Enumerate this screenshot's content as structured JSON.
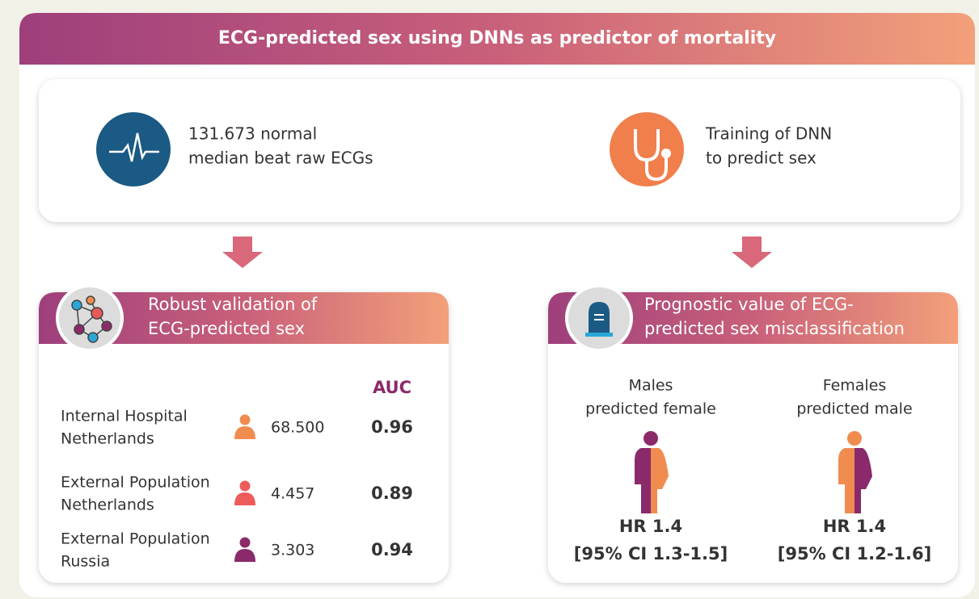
{
  "title": "ECG-predicted sex using DNNs as predictor of mortality",
  "inputs": [
    {
      "lines": [
        "131.673 normal",
        "median beat raw ECGs"
      ]
    },
    {
      "lines": [
        "Training of DNN",
        "to predict sex"
      ]
    }
  ],
  "validation": {
    "title": [
      "Robust validation of",
      "ECG-predicted sex"
    ],
    "auc_header": "AUC",
    "rows": [
      {
        "label": [
          "Internal Hospital",
          "Netherlands"
        ],
        "n": "68.500",
        "auc": "0.96"
      },
      {
        "label": [
          "External Population",
          "Netherlands"
        ],
        "n": "4.457",
        "auc": "0.89"
      },
      {
        "label": [
          "External Population",
          "Russia"
        ],
        "n": "3.303",
        "auc": "0.94"
      }
    ]
  },
  "prognostic": {
    "title": [
      "Prognostic value of ECG-",
      "predicted sex misclassification"
    ],
    "groups": [
      {
        "label": [
          "Males",
          "predicted female"
        ],
        "hr": "HR 1.4",
        "ci": "[95% CI 1.3-1.5]"
      },
      {
        "label": [
          "Females",
          "predicted male"
        ],
        "hr": "HR 1.4",
        "ci": "[95% CI 1.2-1.6]"
      }
    ]
  }
}
